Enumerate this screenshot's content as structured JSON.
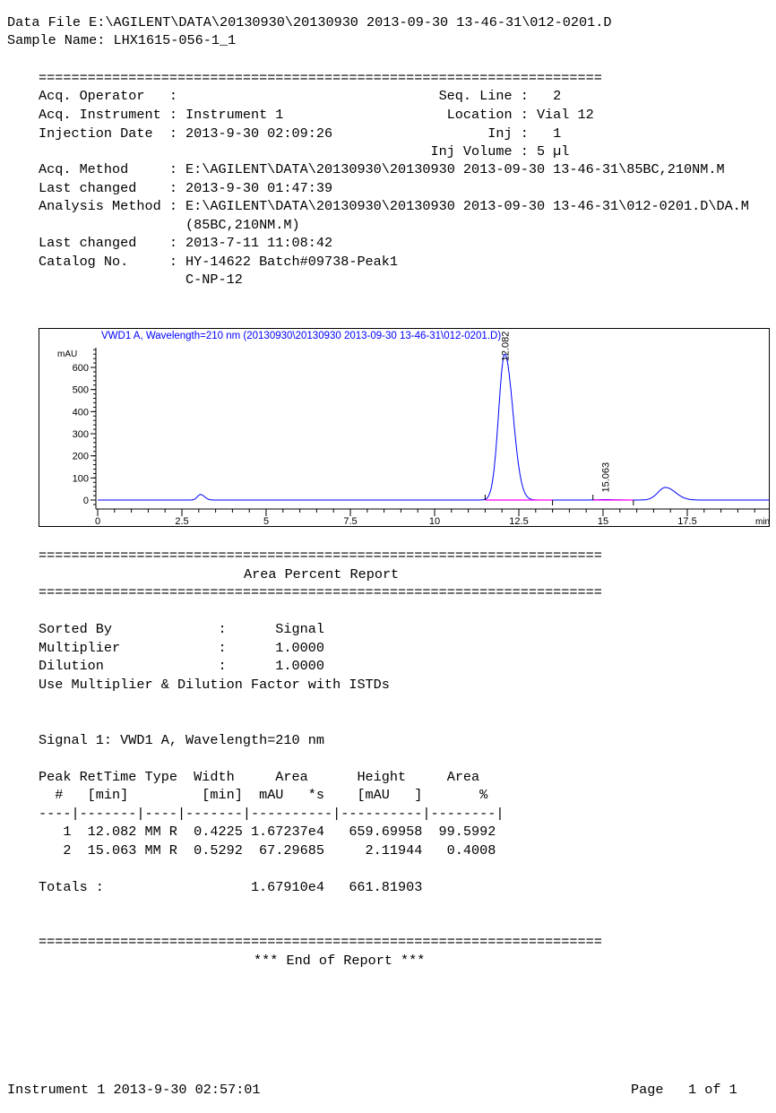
{
  "header": {
    "data_file_label": "Data File",
    "data_file": "E:\\AGILENT\\DATA\\20130930\\20130930 2013-09-30 13-46-31\\012-0201.D",
    "sample_name_label": "Sample Name:",
    "sample_name": "LHX1615-056-1_1"
  },
  "separator": "=====================================================================",
  "info": {
    "operator_label": "Acq. Operator",
    "operator": "",
    "instrument_label": "Acq. Instrument",
    "instrument": "Instrument 1",
    "injection_date_label": "Injection Date",
    "injection_date": "2013-9-30 02:09:26",
    "seq_line_label": "Seq. Line",
    "seq_line": "2",
    "location_label": "Location",
    "location": "Vial 12",
    "inj_label": "Inj",
    "inj": "1",
    "inj_volume_label": "Inj Volume",
    "inj_volume": "5 µl",
    "acq_method_label": "Acq. Method",
    "acq_method": "E:\\AGILENT\\DATA\\20130930\\20130930 2013-09-30 13-46-31\\85BC,210NM.M",
    "last_changed_label": "Last changed",
    "last_changed": "2013-9-30 01:47:39",
    "analysis_method_label": "Analysis Method",
    "analysis_method": "E:\\AGILENT\\DATA\\20130930\\20130930 2013-09-30 13-46-31\\012-0201.D\\DA.M",
    "analysis_method_2": "(85BC,210NM.M)",
    "last_changed_2_label": "Last changed",
    "last_changed_2": "2013-7-11 11:08:42",
    "catalog_label": "Catalog No.",
    "catalog": "HY-14622 Batch#09738-Peak1",
    "catalog_2": "C-NP-12",
    "colon": ":"
  },
  "chart_data": {
    "type": "line",
    "title": "VWD1 A, Wavelength=210 nm (20130930\\20130930 2013-09-30 13-46-31\\012-0201.D)",
    "ylabel": "mAU",
    "xlabel": "min",
    "xlim": [
      0,
      20
    ],
    "ylim": [
      -20,
      700
    ],
    "x_ticks": [
      "0",
      "2.5",
      "5",
      "7.5",
      "10",
      "12.5",
      "15",
      "17.5"
    ],
    "y_ticks": [
      "0",
      "100",
      "200",
      "300",
      "400",
      "500",
      "600"
    ],
    "peaks": [
      {
        "rt": 3.05,
        "height": 25,
        "width": 0.09,
        "label": ""
      },
      {
        "rt": 12.082,
        "height": 659.7,
        "width": 0.18,
        "label": "12.082"
      },
      {
        "rt": 15.063,
        "height": 2.1,
        "width": 0.22,
        "label": "15.063"
      },
      {
        "rt": 16.85,
        "height": 57,
        "width": 0.22,
        "label": ""
      }
    ],
    "integration_baselines": [
      [
        11.5,
        13.5
      ],
      [
        14.7,
        15.9
      ]
    ],
    "signal_color": "#0000ff",
    "baseline_color": "#ff00ff",
    "title_color": "#0000ff"
  },
  "report": {
    "title": "Area Percent Report",
    "sorted_by_label": "Sorted By",
    "sorted_by": "Signal",
    "multiplier_label": "Multiplier",
    "multiplier": "1.0000",
    "dilution_label": "Dilution",
    "dilution": "1.0000",
    "istd_note": "Use Multiplier & Dilution Factor with ISTDs",
    "signal": "Signal 1: VWD1 A, Wavelength=210 nm",
    "table_header_1": "Peak RetTime Type  Width     Area      Height     Area",
    "table_header_2": "  #   [min]         [min]  mAU   *s    [mAU   ]       %",
    "table_rule": "----|-------|----|-------|----------|----------|--------|",
    "rows": [
      {
        "peak": "1",
        "rettime": "12.082",
        "type": "MM R",
        "width": "0.4225",
        "area": "1.67237e4",
        "height": "659.69958",
        "area_pct": "99.5992"
      },
      {
        "peak": "2",
        "rettime": "15.063",
        "type": "MM R",
        "width": "0.5292",
        "area": "67.29685",
        "height": "2.11944",
        "area_pct": "0.4008"
      }
    ],
    "totals_label": "Totals :",
    "totals_area": "1.67910e4",
    "totals_height": "661.81903",
    "end": "*** End of Report ***"
  },
  "footer": {
    "instrument_time": "Instrument 1 2013-9-30 02:57:01",
    "page_label": "Page",
    "page": "1 of 1"
  }
}
